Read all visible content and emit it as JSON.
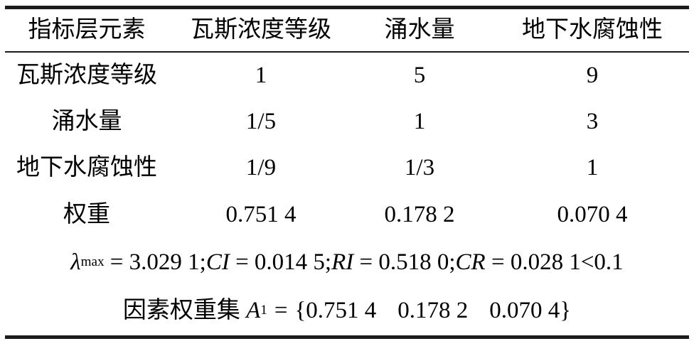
{
  "table": {
    "headers": [
      "指标层元素",
      "瓦斯浓度等级",
      "涌水量",
      "地下水腐蚀性"
    ],
    "rows": [
      {
        "label": "瓦斯浓度等级",
        "values": [
          "1",
          "5",
          "9"
        ]
      },
      {
        "label": "涌水量",
        "values": [
          "1/5",
          "1",
          "3"
        ]
      },
      {
        "label": "地下水腐蚀性",
        "values": [
          "1/9",
          "1/3",
          "1"
        ]
      },
      {
        "label": "权重",
        "values": [
          "0.751 4",
          "0.178 2",
          "0.070 4"
        ]
      }
    ]
  },
  "consistency": {
    "lambda": "λ",
    "lambda_sub": "max",
    "lambda_eq": " = 3.029 1;",
    "ci": "CI",
    "ci_eq": " = 0.014 5;",
    "ri": "RI",
    "ri_eq": " = 0.518 0;",
    "cr": "CR",
    "cr_eq": " = 0.028 1<0.1"
  },
  "weight_set": {
    "prefix": "因素权重集",
    "symbol": "A",
    "symbol_sub": "1",
    "equals": "=",
    "open_brace": "{",
    "values": [
      "0.751 4",
      "0.178 2",
      "0.070 4"
    ],
    "close_brace": "}"
  },
  "colors": {
    "background": "#ffffff",
    "text": "#000000",
    "rule": "#1c1c1c"
  }
}
